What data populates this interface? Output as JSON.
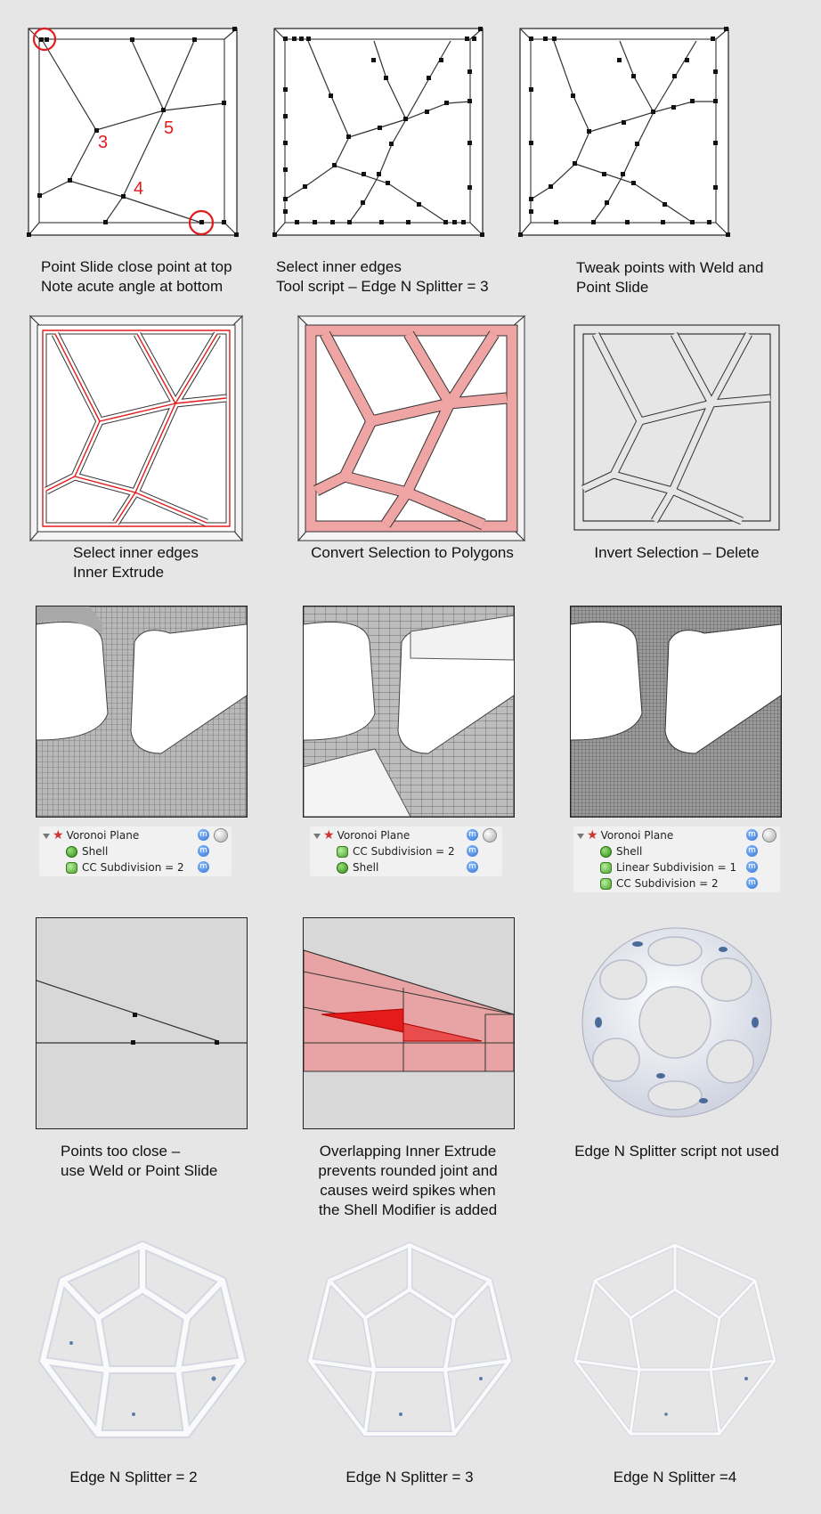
{
  "captions": {
    "r1c1": "Point Slide close point at top\nNote acute angle at bottom",
    "r1c2": "Select inner edges\nTool script – Edge N Splitter = 3",
    "r1c3": "Tweak points with Weld and\nPoint Slide",
    "r2c1": "Select inner edges\nInner Extrude",
    "r2c2": "Convert Selection to Polygons",
    "r2c3": "Invert Selection – Delete",
    "r4c1": "Points too close –\nuse Weld or Point Slide",
    "r4c2": "Overlapping Inner Extrude\nprevents rounded joint and\ncauses weird spikes when\nthe Shell Modifier is added",
    "r4c3": "Edge N Splitter script not used",
    "r5c1": "Edge N Splitter = 2",
    "r5c2": "Edge N Splitter = 3",
    "r5c3": "Edge N Splitter =4"
  },
  "diagram_labels": {
    "n3": "3",
    "n4": "4",
    "n5": "5"
  },
  "layer_panels": [
    {
      "items": [
        {
          "label": "Voronoi Plane",
          "icon": "voronoi-star-icon"
        },
        {
          "label": "Shell",
          "icon": "shell-icon"
        },
        {
          "label": "CC Subdivision = 2",
          "icon": "subdivision-icon"
        }
      ]
    },
    {
      "items": [
        {
          "label": "Voronoi Plane",
          "icon": "voronoi-star-icon"
        },
        {
          "label": "CC Subdivision = 2",
          "icon": "subdivision-icon"
        },
        {
          "label": "Shell",
          "icon": "shell-icon"
        }
      ]
    },
    {
      "items": [
        {
          "label": "Voronoi Plane",
          "icon": "voronoi-star-icon"
        },
        {
          "label": "Shell",
          "icon": "shell-icon"
        },
        {
          "label": "Linear Subdivision = 1",
          "icon": "subdivision-icon"
        },
        {
          "label": "CC Subdivision = 2",
          "icon": "subdivision-icon"
        }
      ]
    }
  ],
  "colors": {
    "highlight_red": "#e31b1b",
    "selection_fill": "#f0a5a5",
    "background": "#e6e6e6"
  }
}
